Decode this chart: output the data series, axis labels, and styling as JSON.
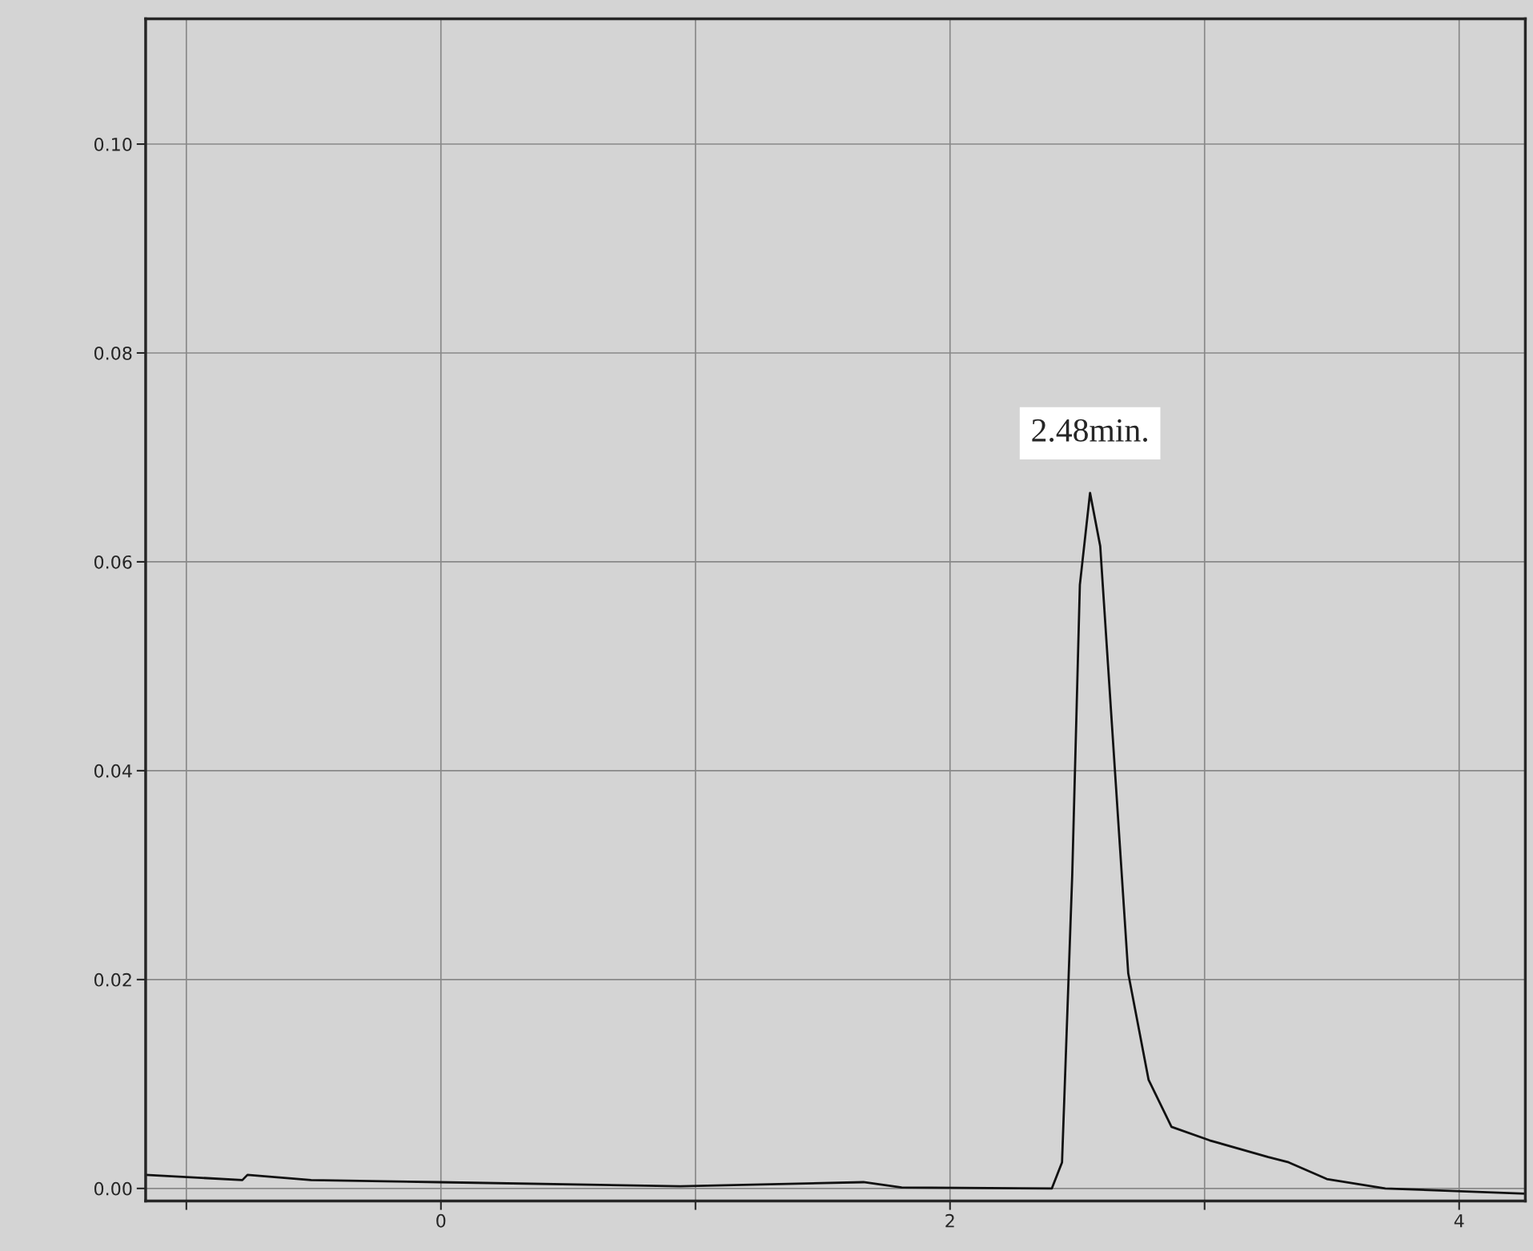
{
  "chart_data": {
    "type": "line",
    "x": [
      -1.16,
      -0.78,
      -0.76,
      -0.51,
      -0.01,
      0.94,
      1.66,
      1.81,
      2.4,
      2.44,
      2.48,
      2.51,
      2.55,
      2.59,
      2.65,
      2.7,
      2.78,
      2.87,
      3.02,
      3.25,
      3.33,
      3.48,
      3.71,
      4.26
    ],
    "series": [
      {
        "color": "#111111",
        "values": [
          0.0013,
          0.0008,
          0.0013,
          0.0008,
          0.0006,
          0.0002,
          0.0006,
          0.0001,
          0.0,
          0.0025,
          0.03,
          0.0578,
          0.0666,
          0.0615,
          0.0392,
          0.0206,
          0.0104,
          0.0059,
          0.0046,
          0.003,
          0.0025,
          0.0009,
          0.0,
          -0.0005
        ]
      }
    ],
    "xlim": [
      -1.16,
      4.26
    ],
    "ylim": [
      -0.0012,
      0.112
    ],
    "xticks": [
      {
        "value": -1,
        "label": null
      },
      0,
      {
        "value": 1,
        "label": null
      },
      2,
      {
        "value": 3,
        "label": null
      },
      4
    ],
    "yticks": [
      {
        "value": 0,
        "label": "0.00"
      },
      {
        "value": 0.02,
        "label": "0.02"
      },
      {
        "value": 0.04,
        "label": "0.04"
      },
      {
        "value": 0.06,
        "label": "0.06"
      },
      {
        "value": 0.08,
        "label": "0.08"
      },
      {
        "value": 0.1,
        "label": "0.10"
      }
    ],
    "annotations": [
      {
        "text": "2.48min.",
        "x": 2.55,
        "y": 0.0666
      }
    ],
    "grid": true,
    "marker": "none",
    "line_style": "solid"
  }
}
